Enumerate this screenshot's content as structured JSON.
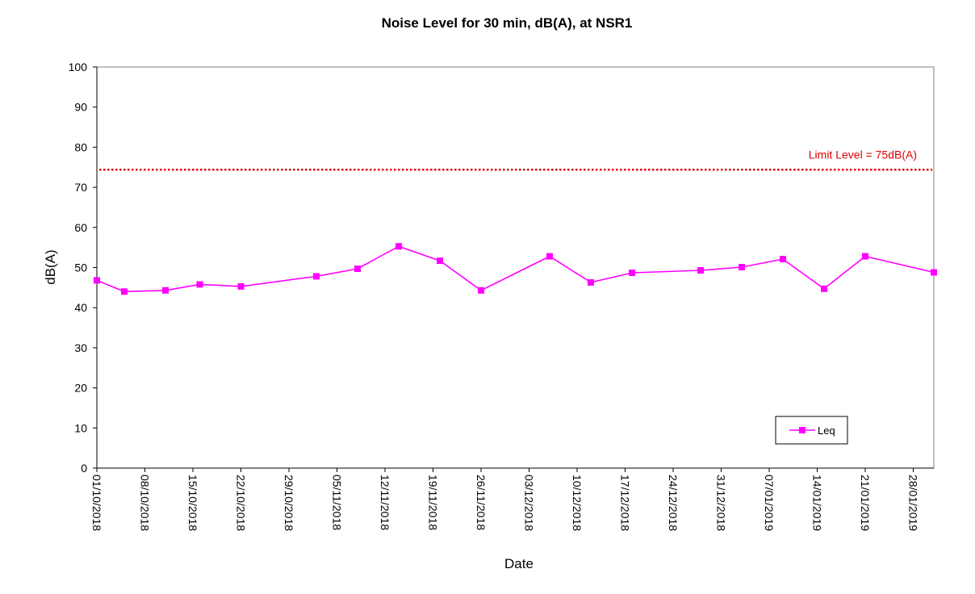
{
  "chart_data": {
    "type": "line",
    "title": "Noise Level for 30 min, dB(A), at NSR1",
    "xlabel": "Date",
    "ylabel": "dB(A)",
    "ylim": [
      0,
      100
    ],
    "y_ticks": [
      0,
      10,
      20,
      30,
      40,
      50,
      60,
      70,
      80,
      90,
      100
    ],
    "xlim": [
      "2018-10-01",
      "2019-01-31"
    ],
    "x_ticks": [
      "2018-10-01",
      "2018-10-08",
      "2018-10-15",
      "2018-10-22",
      "2018-10-29",
      "2018-11-05",
      "2018-11-12",
      "2018-11-19",
      "2018-11-26",
      "2018-12-03",
      "2018-12-10",
      "2018-12-17",
      "2018-12-24",
      "2018-12-31",
      "2019-01-07",
      "2019-01-14",
      "2019-01-21",
      "2019-01-28"
    ],
    "x_tick_labels": [
      "01/10/2018",
      "08/10/2018",
      "15/10/2018",
      "22/10/2018",
      "29/10/2018",
      "05/11/2018",
      "12/11/2018",
      "19/11/2018",
      "26/11/2018",
      "03/12/2018",
      "10/12/2018",
      "17/12/2018",
      "24/12/2018",
      "31/12/2018",
      "07/01/2019",
      "14/01/2019",
      "21/01/2019",
      "28/01/2019"
    ],
    "grid": false,
    "legend_position": "bottom-right",
    "series": [
      {
        "name": "Leq",
        "color": "#FF00FF",
        "marker": "square",
        "points": [
          {
            "x": "2018-10-01",
            "y": 46.8
          },
          {
            "x": "2018-10-05",
            "y": 44.0
          },
          {
            "x": "2018-10-11",
            "y": 44.3
          },
          {
            "x": "2018-10-16",
            "y": 45.8
          },
          {
            "x": "2018-10-22",
            "y": 45.3
          },
          {
            "x": "2018-11-02",
            "y": 47.8
          },
          {
            "x": "2018-11-08",
            "y": 49.7
          },
          {
            "x": "2018-11-14",
            "y": 55.3
          },
          {
            "x": "2018-11-20",
            "y": 51.7
          },
          {
            "x": "2018-11-26",
            "y": 44.3
          },
          {
            "x": "2018-12-06",
            "y": 52.8
          },
          {
            "x": "2018-12-12",
            "y": 46.3
          },
          {
            "x": "2018-12-18",
            "y": 48.7
          },
          {
            "x": "2018-12-28",
            "y": 49.3
          },
          {
            "x": "2019-01-03",
            "y": 50.1
          },
          {
            "x": "2019-01-09",
            "y": 52.1
          },
          {
            "x": "2019-01-15",
            "y": 44.7
          },
          {
            "x": "2019-01-21",
            "y": 52.8
          },
          {
            "x": "2019-01-31",
            "y": 48.8
          }
        ]
      }
    ],
    "limit_line": {
      "value": 75,
      "label": "Limit Level = 75dB(A)",
      "color": "#E00000",
      "style": "dotted"
    }
  }
}
